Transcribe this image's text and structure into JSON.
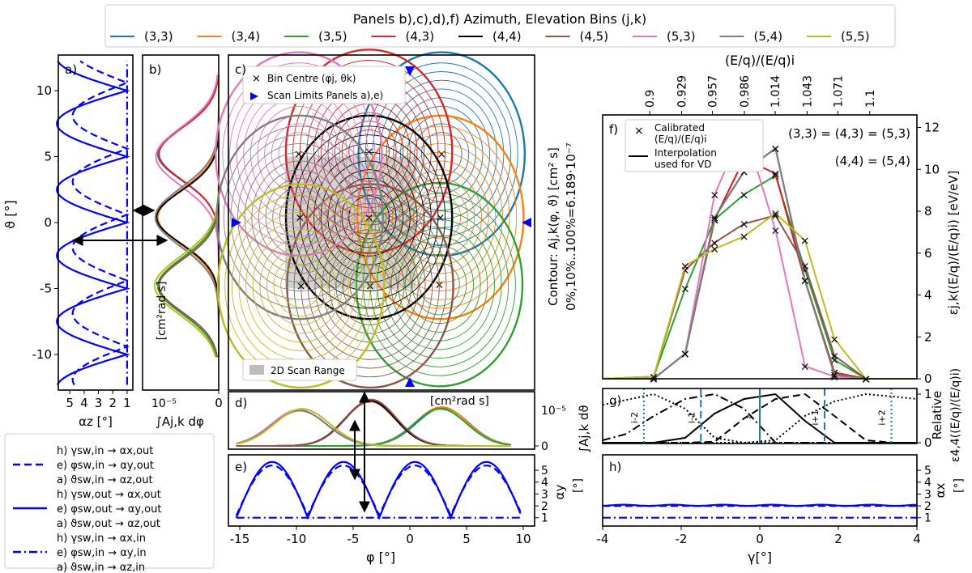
{
  "figure": {
    "legend_title": "Panels b),c),d),f) Azimuth, Elevation Bins (j,k)",
    "bins": [
      {
        "label": "(3,3)",
        "color": "#1f77b4"
      },
      {
        "label": "(3,4)",
        "color": "#ff7f0e"
      },
      {
        "label": "(3,5)",
        "color": "#2ca02c"
      },
      {
        "label": "(4,3)",
        "color": "#d62728"
      },
      {
        "label": "(4,4)",
        "color": "#000000"
      },
      {
        "label": "(4,5)",
        "color": "#8c564b"
      },
      {
        "label": "(5,3)",
        "color": "#e377c2"
      },
      {
        "label": "(5,4)",
        "color": "#7f7f7f"
      },
      {
        "label": "(5,5)",
        "color": "#bcbd22"
      }
    ],
    "scan_color": "#0000ff"
  },
  "chart_data": [
    {
      "panel": "a)",
      "type": "line",
      "ylabel": "ϑ [°]",
      "xlabel": "αz [°]",
      "ylim": [
        -12.7,
        12.7
      ],
      "xlim": [
        5.8,
        0.6
      ],
      "yticks": [
        10,
        5,
        0,
        -5,
        -10
      ],
      "xticks": [
        5,
        4,
        3,
        2,
        1
      ],
      "series": [
        {
          "name": "ϑsw,out → αz,out",
          "style": "solid",
          "period": 10,
          "amplitude": 4.9,
          "offset": 1,
          "phase": 0
        },
        {
          "name": "ϑsw,in → αz,out",
          "style": "dashed",
          "period": 10,
          "amplitude": 3.8,
          "offset": 1,
          "phase": 0.6
        },
        {
          "name": "ϑsw,in → αz,in",
          "style": "dashdot",
          "constant": 1
        }
      ]
    },
    {
      "panel": "b)",
      "type": "line",
      "xlabel": "∫Aj,k dφ",
      "unit": "[cm²rad s]",
      "exponent": "10⁻⁵",
      "xtick_zero": "0",
      "ylim": [
        -12.7,
        12.7
      ],
      "peaks": [
        {
          "bin": "(3,3)",
          "center": 5.2,
          "width": 2.0,
          "height": 1.0
        },
        {
          "bin": "(4,3)",
          "center": 5.2,
          "width": 2.0,
          "height": 0.98
        },
        {
          "bin": "(5,3)",
          "center": 5.0,
          "width": 2.2,
          "height": 1.03
        },
        {
          "bin": "(3,4)",
          "center": 0.4,
          "width": 2.1,
          "height": 1.0
        },
        {
          "bin": "(4,4)",
          "center": 0.4,
          "width": 2.0,
          "height": 1.02
        },
        {
          "bin": "(5,4)",
          "center": 0.4,
          "width": 2.2,
          "height": 1.04
        },
        {
          "bin": "(3,5)",
          "center": -4.8,
          "width": 2.1,
          "height": 1.0
        },
        {
          "bin": "(4,5)",
          "center": -4.8,
          "width": 2.0,
          "height": 0.98
        },
        {
          "bin": "(5,5)",
          "center": -4.8,
          "width": 2.2,
          "height": 1.05
        }
      ]
    },
    {
      "panel": "c)",
      "type": "contour",
      "xlim": [
        -16,
        11
      ],
      "ylim": [
        -12.7,
        12.7
      ],
      "centres": [
        {
          "bin": "(3,3)",
          "phi": 2.8,
          "theta": 5.2
        },
        {
          "bin": "(3,4)",
          "phi": 2.7,
          "theta": 0.4
        },
        {
          "bin": "(3,5)",
          "phi": 2.6,
          "theta": -4.7
        },
        {
          "bin": "(4,3)",
          "phi": -3.6,
          "theta": 5.4
        },
        {
          "bin": "(4,4)",
          "phi": -3.6,
          "theta": 0.4
        },
        {
          "bin": "(4,5)",
          "phi": -3.5,
          "theta": -4.8
        },
        {
          "bin": "(5,3)",
          "phi": -9.8,
          "theta": 5.2
        },
        {
          "bin": "(5,4)",
          "phi": -9.7,
          "theta": 0.4
        },
        {
          "bin": "(5,5)",
          "phi": -9.6,
          "theta": -4.8
        }
      ],
      "scan_range": {
        "phi": [
          -11,
          0.5
        ],
        "theta": [
          -5,
          5
        ]
      },
      "legend_centre": "Bin Centre (φj, θk)",
      "legend_scan_limits": "Scan Limits Panels a),e)",
      "legend_scan_range": "2D Scan Range",
      "right_label_1": "Contour: Aj,k(φ, ϑ) [cm² s]",
      "right_label_2": "0%,10%..100%=6.189·10⁻⁷"
    },
    {
      "panel": "d)",
      "type": "line",
      "ylabel": "∫Aj,k dϑ",
      "unit": "[cm²rad s]",
      "exponent": "10⁻⁵",
      "ytick_zero": "0",
      "xlim": [
        -16,
        11
      ],
      "peaks": [
        {
          "bin": "(3,3)",
          "center": 2.9,
          "width": 2.3,
          "height": 0.82
        },
        {
          "bin": "(3,4)",
          "center": 2.8,
          "width": 2.3,
          "height": 0.84
        },
        {
          "bin": "(3,5)",
          "center": 2.7,
          "width": 2.3,
          "height": 0.8
        },
        {
          "bin": "(4,3)",
          "center": -3.5,
          "width": 2.2,
          "height": 0.96
        },
        {
          "bin": "(4,4)",
          "center": -3.5,
          "width": 2.2,
          "height": 0.98
        },
        {
          "bin": "(4,5)",
          "center": -3.4,
          "width": 2.2,
          "height": 1.0
        },
        {
          "bin": "(5,3)",
          "center": -9.8,
          "width": 2.4,
          "height": 0.78
        },
        {
          "bin": "(5,4)",
          "center": -9.7,
          "width": 2.4,
          "height": 0.76
        },
        {
          "bin": "(5,5)",
          "center": -9.5,
          "width": 2.4,
          "height": 0.8
        }
      ]
    },
    {
      "panel": "e)",
      "type": "line",
      "xlabel": "φ [°]",
      "ylabel": "αy",
      "ylabel_unit": "[°]",
      "xlim": [
        -16,
        11
      ],
      "ylim": [
        0.3,
        6.3
      ],
      "xticks": [
        -15,
        -10,
        -5,
        0,
        5,
        10
      ],
      "yticks": [
        1,
        2,
        3,
        4,
        5
      ],
      "series": [
        {
          "name": "φsw,out → αy,out",
          "style": "solid",
          "period": 6.3,
          "amplitude": 4.7,
          "offset": 1,
          "start": -15.3
        },
        {
          "name": "φsw,in → αy,out",
          "style": "dashed",
          "period": 6.3,
          "amplitude": 4.2,
          "offset": 1.2,
          "start": -15.3
        },
        {
          "name": "φsw,in → αy,in",
          "style": "dashdot",
          "constant": 1
        }
      ]
    },
    {
      "panel": "f)",
      "type": "line",
      "ylabel": "εj,k((E/q)/(E/q)i) [eV/eV]",
      "top_xlabel": "(E/q)/(E/q)i",
      "top_ticks": [
        "0.9",
        "0.929",
        "0.957",
        "0.986",
        "1.014",
        "1.043",
        "1.071",
        "1.1"
      ],
      "xlim": [
        -4,
        4
      ],
      "ylim": [
        0,
        12.6
      ],
      "yticks": [
        0,
        2,
        4,
        6,
        8,
        10,
        12
      ],
      "x": [
        -2.7,
        -1.9,
        -1.15,
        -0.4,
        0.4,
        1.15,
        1.9,
        2.7
      ],
      "series": [
        {
          "name": "(3,3)",
          "values": [
            0,
            1.2,
            7.6,
            10.5,
            9.8,
            4.7,
            0.3,
            0
          ]
        },
        {
          "name": "(3,4)",
          "values": [
            0,
            1.2,
            7.6,
            10.5,
            9.8,
            4.7,
            0.3,
            0
          ]
        },
        {
          "name": "(3,5)",
          "values": [
            0.1,
            4.3,
            7.6,
            8.8,
            9.7,
            5.2,
            0.9,
            0
          ]
        },
        {
          "name": "(4,3)",
          "values": [
            0,
            1.2,
            7.6,
            10.5,
            9.8,
            4.7,
            0.3,
            0
          ]
        },
        {
          "name": "(4,4)",
          "values": [
            0,
            1.2,
            7.7,
            9.9,
            11.0,
            4.7,
            0.2,
            0
          ]
        },
        {
          "name": "(4,5)",
          "values": [
            0.1,
            5.2,
            6.5,
            7.4,
            7.8,
            5.4,
            1.1,
            0
          ]
        },
        {
          "name": "(5,3)",
          "values": [
            0,
            1.2,
            8.8,
            12.0,
            7.1,
            0.6,
            0.1,
            0
          ]
        },
        {
          "name": "(5,4)",
          "values": [
            0,
            1.2,
            7.7,
            9.9,
            11.0,
            4.7,
            0.2,
            0
          ]
        },
        {
          "name": "(5,5)",
          "values": [
            0.1,
            5.4,
            6.2,
            6.8,
            7.9,
            6.6,
            1.9,
            0
          ]
        }
      ],
      "legend_marker": "Calibrated",
      "legend_marker_2": "(E/q)/(E/q)i",
      "legend_line": "Interpolation",
      "legend_line_2": "used for VD",
      "annotation_pink": "(3,3) = (4,3) = (5,3)",
      "annotation_black": "(4,4) = (5,4)"
    },
    {
      "panel": "g)",
      "type": "line",
      "ylabel": "Relative",
      "ylabel_2": "ε4,4((E/q)/(E/q)i)",
      "left_label": "∫Aj,k dϑ",
      "xlim": [
        -4,
        4
      ],
      "yticks": [
        0,
        1
      ],
      "x": [
        -4.0,
        -3.4,
        -2.7,
        -1.9,
        -1.15,
        -0.4,
        0.4,
        1.15,
        1.9,
        2.7,
        3.4,
        4.0
      ],
      "series": [
        {
          "name": "i-2",
          "style": "dotted",
          "values": [
            0.78,
            0.88,
            1.0,
            0.7,
            0.1,
            0,
            0,
            0,
            0,
            0,
            0,
            0
          ]
        },
        {
          "name": "i-1",
          "style": "dashdot",
          "values": [
            0.05,
            0.18,
            0.55,
            0.9,
            1.0,
            0.7,
            0.0,
            0,
            0,
            0,
            0,
            0
          ]
        },
        {
          "name": "i",
          "style": "solid",
          "values": [
            0,
            0,
            0,
            0.1,
            0.6,
            0.9,
            1.0,
            0.45,
            0.0,
            0,
            0,
            0
          ]
        },
        {
          "name": "i+1",
          "style": "dashed",
          "values": [
            0,
            0,
            0,
            0,
            0.02,
            0.5,
            0.9,
            1.0,
            0.55,
            0.05,
            0,
            0
          ]
        },
        {
          "name": "i+2",
          "style": "dotted",
          "values": [
            0,
            0,
            0,
            0,
            0,
            0,
            0.05,
            0.55,
            0.85,
            1.0,
            0.95,
            0.9
          ]
        }
      ],
      "markers": [
        {
          "label": "i-2",
          "x": -2.95,
          "style": "dotted"
        },
        {
          "label": "i-1",
          "x": -1.5,
          "style": "dashed"
        },
        {
          "label": "i",
          "x": 0.0,
          "style": "solid"
        },
        {
          "label": "i+1",
          "x": 1.65,
          "style": "dashed"
        },
        {
          "label": "i+2",
          "x": 3.35,
          "style": "dotted"
        }
      ]
    },
    {
      "panel": "h)",
      "type": "line",
      "xlabel": "γ[°]",
      "ylabel": "αx",
      "ylabel_unit": "[°]",
      "xlim": [
        -4,
        4
      ],
      "ylim": [
        0.3,
        6.3
      ],
      "xticks": [
        -4,
        -2,
        0,
        2,
        4
      ],
      "yticks": [
        1,
        2,
        3,
        4,
        5
      ],
      "series": [
        {
          "name": "γsw,out → αx,out",
          "style": "solid",
          "constant": 2.05
        },
        {
          "name": "γsw,in → αx,out",
          "style": "dashed",
          "constant": 2.0
        },
        {
          "name": "γsw,in → αx,in",
          "style": "dashdot",
          "constant": 1
        }
      ]
    }
  ],
  "legend_lines": {
    "dashed": [
      "h) γsw,in → αx,out",
      "e) φsw,in → αy,out",
      "a) ϑsw,in → αz,out"
    ],
    "solid": [
      "h) γsw,out → αx,out",
      "e) φsw,out → αy,out",
      "a) ϑsw,out → αz,out"
    ],
    "dashdot": [
      "h) γsw,in → αx,in",
      "e) φsw,in → αy,in",
      "a) ϑsw,in → αz,in"
    ]
  }
}
